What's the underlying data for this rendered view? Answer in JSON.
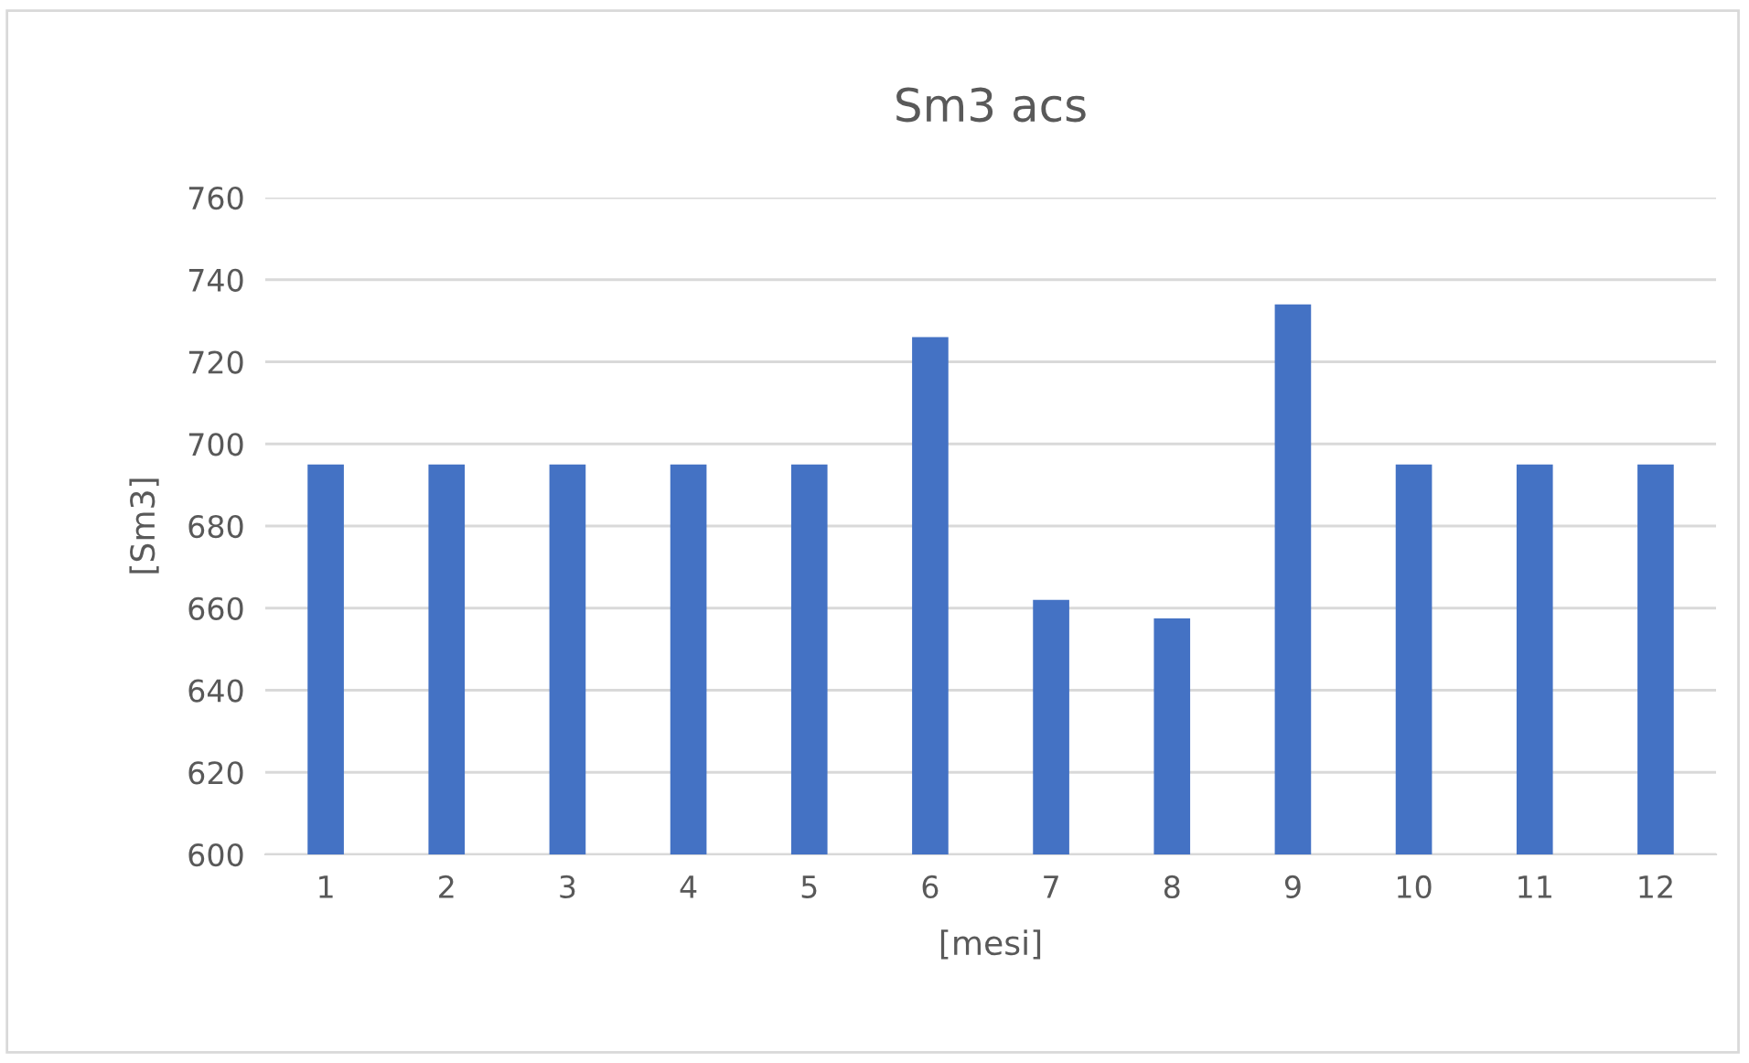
{
  "chart_data": {
    "type": "bar",
    "title": "Sm3 acs",
    "xlabel": "[mesi]",
    "ylabel": "[Sm3]",
    "categories": [
      "1",
      "2",
      "3",
      "4",
      "5",
      "6",
      "7",
      "8",
      "9",
      "10",
      "11",
      "12"
    ],
    "values": [
      695,
      695,
      695,
      695,
      695,
      726,
      662,
      657.5,
      734,
      695,
      695,
      695
    ],
    "color": "#4472c4",
    "ylim": [
      600,
      760
    ],
    "yticks": [
      600,
      620,
      640,
      660,
      680,
      700,
      720,
      740,
      760
    ],
    "grid": "y",
    "legend": false
  }
}
